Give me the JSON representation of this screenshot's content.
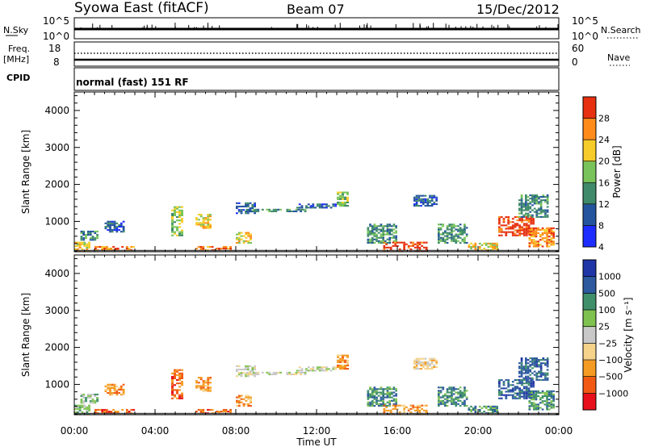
{
  "header": {
    "station": "Syowa East (fitACF)",
    "beam": "Beam 07",
    "date": "15/Dec/2012"
  },
  "strips": {
    "nsky": {
      "label": "N.Sky",
      "ticks": [
        "10^5",
        "10^0"
      ]
    },
    "nsearch": {
      "label": "N.Search",
      "ticks": [
        "10^5",
        "10^0"
      ]
    },
    "freq": {
      "label": "Freq.",
      "unit": "[MHz]",
      "ticks": [
        "18",
        "8"
      ]
    },
    "nave": {
      "label": "Nave",
      "ticks": [
        "60",
        "0"
      ]
    },
    "cpid": {
      "label": "CPID",
      "value": "normal (fast) 151 RF"
    }
  },
  "chart_data": [
    {
      "type": "heatmap",
      "name": "Power",
      "xlabel": "",
      "ylabel": "Slant Range [km]",
      "x_range_hours": [
        0,
        24
      ],
      "ylim": [
        180,
        4500
      ],
      "y_ticks": [
        "1000",
        "2000",
        "3000",
        "4000"
      ],
      "colorbar": {
        "label": "Power [dB]",
        "ticks": [
          "28",
          "24",
          "20",
          "16",
          "12",
          "8",
          "4"
        ],
        "colors_low_to_high": [
          "#1e2dff",
          "#24549e",
          "#3f8a6a",
          "#78c45a",
          "#f5cc29",
          "#ff8c1a",
          "#e63010"
        ]
      },
      "patches": [
        {
          "t0": 0.0,
          "t1": 0.8,
          "r0": 180,
          "r1": 420,
          "lvl": 4
        },
        {
          "t0": 0.3,
          "t1": 1.2,
          "r0": 480,
          "r1": 750,
          "lvl": 2
        },
        {
          "t0": 1.0,
          "t1": 3.0,
          "r0": 200,
          "r1": 330,
          "lvl": 5
        },
        {
          "t0": 1.5,
          "t1": 2.5,
          "r0": 700,
          "r1": 1000,
          "lvl": 1
        },
        {
          "t0": 4.8,
          "t1": 5.4,
          "r0": 600,
          "r1": 1400,
          "lvl": 3
        },
        {
          "t0": 6.0,
          "t1": 6.8,
          "r0": 800,
          "r1": 1200,
          "lvl": 4
        },
        {
          "t0": 6.0,
          "t1": 7.8,
          "r0": 200,
          "r1": 320,
          "lvl": 5
        },
        {
          "t0": 8.0,
          "t1": 9.0,
          "r0": 1200,
          "r1": 1500,
          "lvl": 1
        },
        {
          "t0": 8.0,
          "t1": 8.8,
          "r0": 400,
          "r1": 700,
          "lvl": 4
        },
        {
          "t0": 8.5,
          "t1": 11.5,
          "r0": 1250,
          "r1": 1330,
          "lvl": 2
        },
        {
          "t0": 11.0,
          "t1": 13.0,
          "r0": 1350,
          "r1": 1450,
          "lvl": 1
        },
        {
          "t0": 13.0,
          "t1": 13.6,
          "r0": 1400,
          "r1": 1800,
          "lvl": 3
        },
        {
          "t0": 14.5,
          "t1": 16.0,
          "r0": 400,
          "r1": 900,
          "lvl": 2
        },
        {
          "t0": 15.3,
          "t1": 17.5,
          "r0": 180,
          "r1": 420,
          "lvl": 6
        },
        {
          "t0": 16.8,
          "t1": 18.0,
          "r0": 1400,
          "r1": 1700,
          "lvl": 1
        },
        {
          "t0": 18.0,
          "t1": 19.5,
          "r0": 400,
          "r1": 900,
          "lvl": 2
        },
        {
          "t0": 19.5,
          "t1": 21.0,
          "r0": 200,
          "r1": 400,
          "lvl": 4
        },
        {
          "t0": 21.0,
          "t1": 22.8,
          "r0": 600,
          "r1": 1100,
          "lvl": 6
        },
        {
          "t0": 22.5,
          "t1": 23.8,
          "r0": 300,
          "r1": 800,
          "lvl": 5
        },
        {
          "t0": 22.0,
          "t1": 23.5,
          "r0": 1100,
          "r1": 1700,
          "lvl": 2
        }
      ]
    },
    {
      "type": "heatmap",
      "name": "Velocity",
      "xlabel": "Time UT",
      "ylabel": "Slant Range [km]",
      "x_range_hours": [
        0,
        24
      ],
      "x_ticks": [
        "00:00",
        "04:00",
        "08:00",
        "12:00",
        "16:00",
        "20:00",
        "00:00"
      ],
      "ylim": [
        180,
        4500
      ],
      "y_ticks": [
        "1000",
        "2000",
        "3000",
        "4000"
      ],
      "colorbar": {
        "label": "Velocity [m s⁻¹]",
        "ticks": [
          "1000",
          "500",
          "100",
          "25",
          "−25",
          "−100",
          "−500",
          "−1000"
        ],
        "colors_low_to_high": [
          "#e8101a",
          "#f25a14",
          "#f59a22",
          "#f5d38a",
          "#c8c8c8",
          "#7fc24f",
          "#3f8f6b",
          "#2d5a9e",
          "#2035a6"
        ]
      },
      "patches": [
        {
          "t0": 0.0,
          "t1": 0.8,
          "r0": 180,
          "r1": 420,
          "lvl": 5
        },
        {
          "t0": 0.3,
          "t1": 1.2,
          "r0": 480,
          "r1": 750,
          "lvl": 5
        },
        {
          "t0": 1.0,
          "t1": 3.0,
          "r0": 200,
          "r1": 330,
          "lvl": 1
        },
        {
          "t0": 1.5,
          "t1": 2.5,
          "r0": 700,
          "r1": 1000,
          "lvl": 2
        },
        {
          "t0": 4.8,
          "t1": 5.4,
          "r0": 600,
          "r1": 1400,
          "lvl": 1
        },
        {
          "t0": 6.0,
          "t1": 6.8,
          "r0": 800,
          "r1": 1200,
          "lvl": 2
        },
        {
          "t0": 6.0,
          "t1": 7.8,
          "r0": 200,
          "r1": 320,
          "lvl": 1
        },
        {
          "t0": 8.0,
          "t1": 9.0,
          "r0": 1200,
          "r1": 1500,
          "lvl": 4
        },
        {
          "t0": 8.0,
          "t1": 8.8,
          "r0": 400,
          "r1": 700,
          "lvl": 2
        },
        {
          "t0": 8.5,
          "t1": 11.5,
          "r0": 1250,
          "r1": 1330,
          "lvl": 4
        },
        {
          "t0": 11.0,
          "t1": 13.0,
          "r0": 1350,
          "r1": 1450,
          "lvl": 4
        },
        {
          "t0": 13.0,
          "t1": 13.6,
          "r0": 1400,
          "r1": 1800,
          "lvl": 2
        },
        {
          "t0": 14.5,
          "t1": 16.0,
          "r0": 400,
          "r1": 900,
          "lvl": 6
        },
        {
          "t0": 15.3,
          "t1": 17.5,
          "r0": 180,
          "r1": 420,
          "lvl": 2
        },
        {
          "t0": 16.8,
          "t1": 18.0,
          "r0": 1400,
          "r1": 1700,
          "lvl": 3
        },
        {
          "t0": 18.0,
          "t1": 19.5,
          "r0": 400,
          "r1": 900,
          "lvl": 6
        },
        {
          "t0": 19.5,
          "t1": 21.0,
          "r0": 200,
          "r1": 400,
          "lvl": 6
        },
        {
          "t0": 21.0,
          "t1": 22.8,
          "r0": 600,
          "r1": 1100,
          "lvl": 7
        },
        {
          "t0": 22.5,
          "t1": 23.8,
          "r0": 300,
          "r1": 800,
          "lvl": 6
        },
        {
          "t0": 22.0,
          "t1": 23.5,
          "r0": 1100,
          "r1": 1700,
          "lvl": 7
        }
      ]
    }
  ]
}
